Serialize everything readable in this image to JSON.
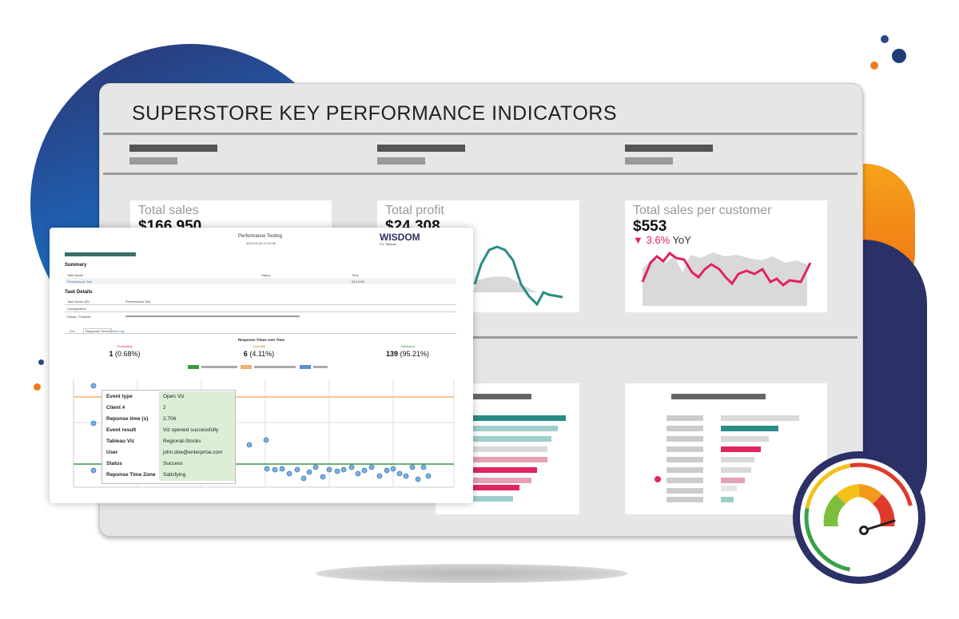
{
  "dashboard": {
    "title": "SUPERSTORE KEY PERFORMANCE INDICATORS",
    "kpis": [
      {
        "label": "Total sales",
        "value": "$166,950"
      },
      {
        "label": "Total profit",
        "value": "$24,308"
      },
      {
        "label": "Total sales per customer",
        "value": "$553",
        "yoy_arrow": "▼",
        "yoy_pct": "3.6%",
        "yoy_suffix": "YoY",
        "yoy_color": "#e0245e"
      }
    ],
    "colors": {
      "teal": "#2a8c86",
      "pink": "#e0245e",
      "gray_area": "#d9d9d9"
    }
  },
  "report": {
    "title": "Performance Testing",
    "date": "2024-01-04 17:23:42",
    "brand": "WISDOM",
    "brand_sub": "For Tableau",
    "summary_heading": "Summary",
    "summary_cols": [
      "Task Name",
      "Status",
      "Time"
    ],
    "summary_row_task": "Performance Test",
    "summary_row_time": "03:19:56",
    "task_details_heading": "Task Details",
    "task_name_label": "Task Name (ID)",
    "task_name_value": "Performance Test",
    "configuration_label": "Configuration",
    "result_label": "Result / Timeline",
    "tabs": [
      "S.K.",
      "Response Times",
      "Event Log"
    ],
    "chart_title": "Response Times over Time",
    "stats": [
      {
        "label": "Frustrating",
        "count": "1",
        "pct": "(0.68%)",
        "color": "#e0245e"
      },
      {
        "label": "Tolerable",
        "count": "6",
        "pct": "(4.11%)",
        "color": "#f0a040"
      },
      {
        "label": "Satisfying",
        "count": "139",
        "pct": "(95.21%)",
        "color": "#3a9a3a"
      }
    ]
  },
  "tooltip": {
    "rows": [
      {
        "key": "Event type",
        "value": "Open Viz"
      },
      {
        "key": "Client #",
        "value": "2"
      },
      {
        "key": "Reponse time (s)",
        "value": "2.706"
      },
      {
        "key": "Event result",
        "value": "Viz opened successfully"
      },
      {
        "key": "Tableau Viz",
        "value": "Regional-Stocks"
      },
      {
        "key": "User",
        "value": "john.doe@enterprise.com"
      },
      {
        "key": "Status",
        "value": "Success"
      },
      {
        "key": "Reponse Time Zone",
        "value": "Satisfying"
      }
    ]
  },
  "gauge": {
    "level": 0.8
  }
}
